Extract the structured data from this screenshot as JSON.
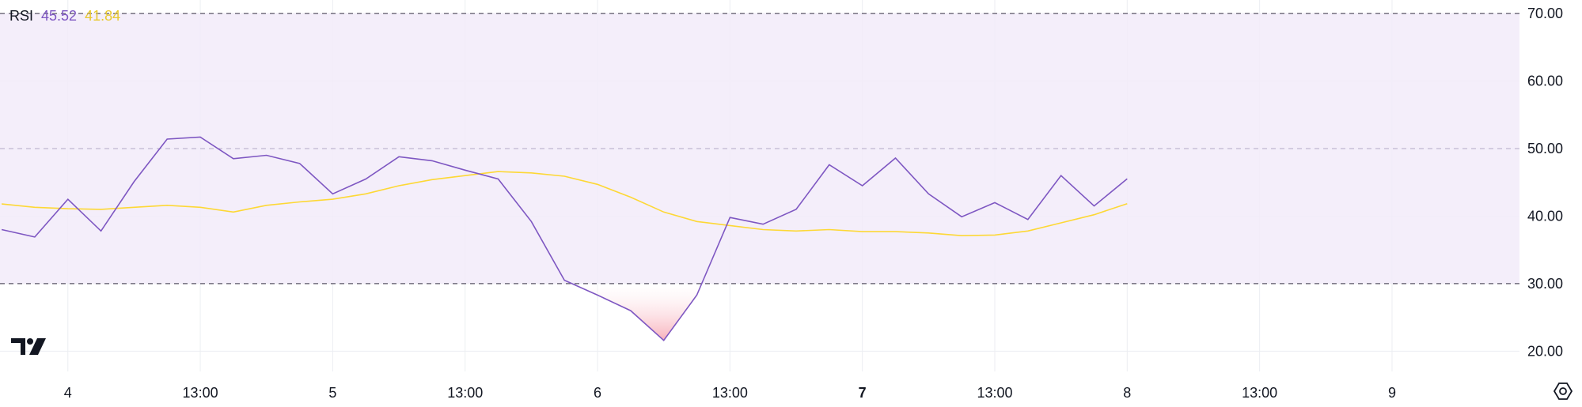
{
  "legend": {
    "name": "RSI",
    "rsi_value": "45.52",
    "ma_value": "41.84"
  },
  "colors": {
    "rsi_line": "#7e57c2",
    "ma_line": "#fdd835",
    "band_fill": "#f2ebf9",
    "oversold_fill": "#f7a8b4",
    "text": "#131722",
    "grid": "#eceef2",
    "dashed": "#787b86"
  },
  "icons": {
    "logo": "tradingview-logo-icon",
    "settings": "settings-icon"
  },
  "chart_data": {
    "type": "line",
    "ylim": [
      17,
      72
    ],
    "y_ticks": [
      "70.00",
      "60.00",
      "50.00",
      "40.00",
      "30.00",
      "20.00"
    ],
    "y_tick_values": [
      70,
      60,
      50,
      40,
      30,
      20
    ],
    "bands": {
      "upper": 70,
      "middle": 50,
      "lower": 30
    },
    "x_ticks": [
      "4",
      "13:00",
      "5",
      "13:00",
      "6",
      "13:00",
      "7",
      "13:00",
      "8",
      "13:00",
      "9"
    ],
    "x_tick_bars": [
      2,
      6,
      10,
      14,
      18,
      22,
      26,
      30,
      34,
      38,
      42
    ],
    "x_tick_bold_index": 6,
    "bar_range": [
      0.05,
      45.85
    ],
    "series": [
      {
        "key": "rsi",
        "values": [
          38.0,
          36.9,
          42.5,
          37.8,
          45.1,
          51.4,
          51.7,
          48.5,
          49.0,
          47.8,
          43.3,
          45.5,
          48.8,
          48.2,
          46.8,
          45.5,
          39.2,
          30.5,
          28.3,
          26.0,
          21.6,
          28.3,
          39.8,
          38.8,
          41.0,
          47.6,
          44.5,
          48.6,
          43.3,
          39.9,
          42.0,
          39.5,
          46.0,
          41.5,
          45.52
        ]
      },
      {
        "key": "ma",
        "values": [
          41.8,
          41.3,
          41.1,
          41.0,
          41.3,
          41.6,
          41.3,
          40.6,
          41.6,
          42.1,
          42.5,
          43.3,
          44.5,
          45.4,
          46.0,
          46.6,
          46.4,
          45.9,
          44.7,
          42.8,
          40.6,
          39.2,
          38.6,
          38.0,
          37.8,
          38.0,
          37.7,
          37.7,
          37.5,
          37.1,
          37.2,
          37.8,
          39.0,
          40.2,
          41.84
        ]
      }
    ]
  }
}
